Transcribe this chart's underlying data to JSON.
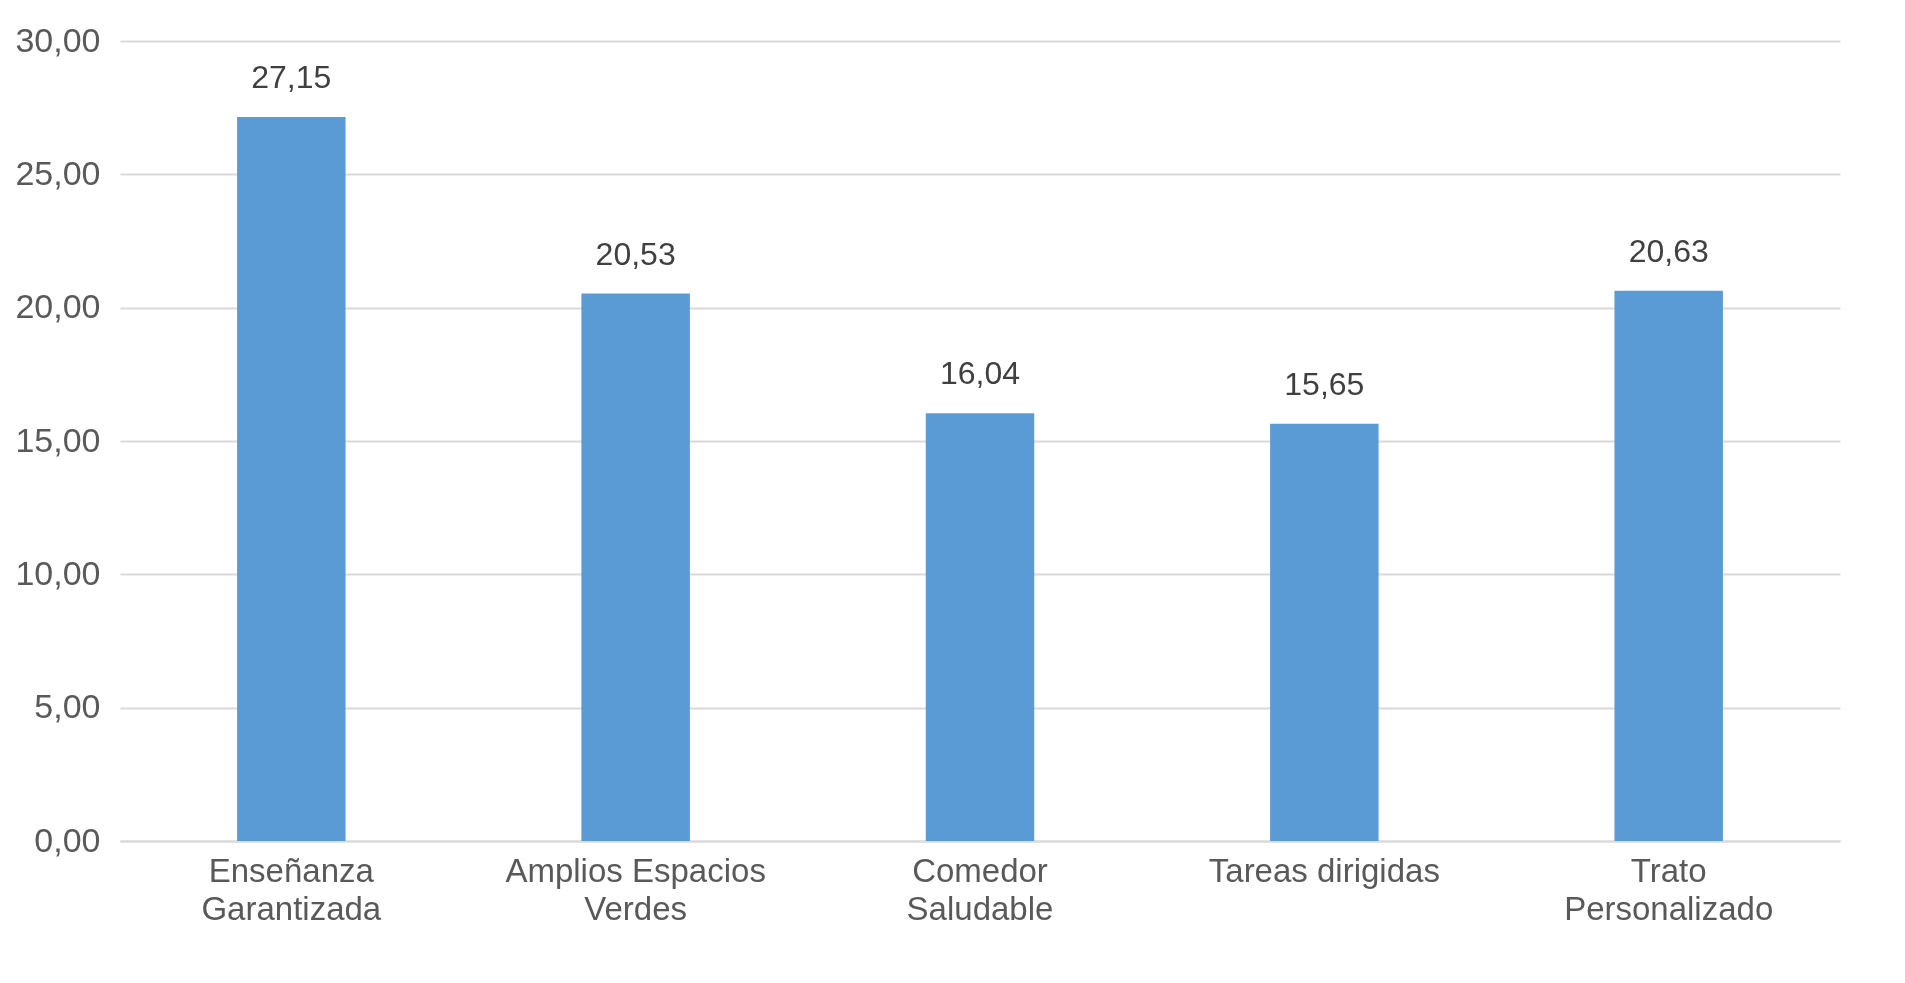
{
  "chart_data": {
    "type": "bar",
    "categories": [
      "Enseñanza Garantizada",
      "Amplios Espacios Verdes",
      "Comedor Saludable",
      "Tareas dirigidas",
      "Trato Personalizado"
    ],
    "values": [
      27.15,
      20.53,
      16.04,
      15.65,
      20.63
    ],
    "value_labels": [
      "27,15",
      "20,53",
      "16,04",
      "15,65",
      "20,63"
    ],
    "color": "#5b9bd5",
    "ylim": [
      0,
      30
    ],
    "yticks": [
      {
        "value": 0,
        "label": "0,00"
      },
      {
        "value": 5,
        "label": "5,00"
      },
      {
        "value": 10,
        "label": "10,00"
      },
      {
        "value": 15,
        "label": "15,00"
      },
      {
        "value": 20,
        "label": "20,00"
      },
      {
        "value": 25,
        "label": "25,00"
      },
      {
        "value": 30,
        "label": "30,00"
      }
    ],
    "grid": "y"
  }
}
